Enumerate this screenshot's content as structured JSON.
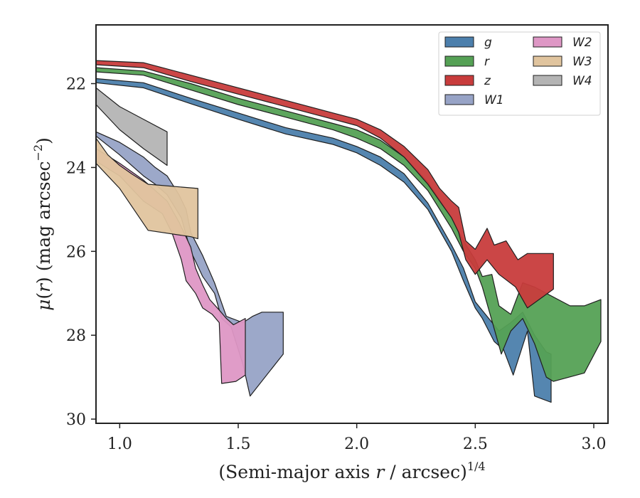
{
  "chart_data": {
    "type": "area",
    "xlabel": "(Semi-major axis r / arcsec)1/4",
    "ylabel": "μ(r) (mag arcsec−2)",
    "xlim": [
      0.9,
      3.06
    ],
    "ylim": [
      30.1,
      20.6
    ],
    "y_inverted": true,
    "grid": false,
    "legend_position": "top-right",
    "legend_columns": 2,
    "x_ticks": [
      1.0,
      1.5,
      2.0,
      2.5,
      3.0
    ],
    "x_tick_labels": [
      "1.0",
      "1.5",
      "2.0",
      "2.5",
      "3.0"
    ],
    "y_ticks": [
      22,
      24,
      26,
      28,
      30
    ],
    "y_tick_labels": [
      "22",
      "24",
      "26",
      "28",
      "30"
    ],
    "series": [
      {
        "name": "g",
        "color": "#4c7fac",
        "upper": [
          [
            0.9,
            21.88
          ],
          [
            1.1,
            21.98
          ],
          [
            1.3,
            22.35
          ],
          [
            1.5,
            22.7
          ],
          [
            1.7,
            23.05
          ],
          [
            1.9,
            23.3
          ],
          [
            2.0,
            23.5
          ],
          [
            2.1,
            23.75
          ],
          [
            2.2,
            24.15
          ],
          [
            2.3,
            24.85
          ],
          [
            2.4,
            25.85
          ],
          [
            2.45,
            26.4
          ],
          [
            2.5,
            27.2
          ],
          [
            2.55,
            27.55
          ],
          [
            2.6,
            27.9
          ],
          [
            2.65,
            27.7
          ],
          [
            2.7,
            27.45
          ],
          [
            2.75,
            28.0
          ],
          [
            2.8,
            28.4
          ],
          [
            2.82,
            28.45
          ]
        ],
        "lower": [
          [
            2.82,
            29.6
          ],
          [
            2.75,
            29.45
          ],
          [
            2.72,
            27.9
          ],
          [
            2.66,
            28.95
          ],
          [
            2.62,
            28.35
          ],
          [
            2.58,
            28.15
          ],
          [
            2.53,
            27.6
          ],
          [
            2.5,
            27.35
          ],
          [
            2.45,
            26.7
          ],
          [
            2.4,
            26.0
          ],
          [
            2.3,
            25.0
          ],
          [
            2.2,
            24.35
          ],
          [
            2.1,
            23.95
          ],
          [
            2.0,
            23.65
          ],
          [
            1.9,
            23.45
          ],
          [
            1.7,
            23.2
          ],
          [
            1.5,
            22.85
          ],
          [
            1.3,
            22.48
          ],
          [
            1.1,
            22.1
          ],
          [
            0.9,
            21.98
          ]
        ]
      },
      {
        "name": "r",
        "color": "#55a155",
        "upper": [
          [
            0.9,
            21.62
          ],
          [
            1.1,
            21.7
          ],
          [
            1.3,
            22.0
          ],
          [
            1.5,
            22.35
          ],
          [
            1.7,
            22.65
          ],
          [
            1.9,
            22.95
          ],
          [
            2.0,
            23.1
          ],
          [
            2.1,
            23.35
          ],
          [
            2.2,
            23.75
          ],
          [
            2.3,
            24.35
          ],
          [
            2.4,
            25.2
          ],
          [
            2.45,
            25.75
          ],
          [
            2.5,
            26.2
          ],
          [
            2.53,
            26.6
          ],
          [
            2.57,
            26.55
          ],
          [
            2.6,
            27.3
          ],
          [
            2.65,
            27.5
          ],
          [
            2.7,
            26.75
          ],
          [
            2.75,
            26.85
          ],
          [
            2.8,
            27.0
          ],
          [
            2.9,
            27.3
          ],
          [
            2.96,
            27.3
          ],
          [
            3.03,
            27.15
          ]
        ],
        "lower": [
          [
            3.03,
            28.15
          ],
          [
            2.96,
            28.9
          ],
          [
            2.83,
            29.1
          ],
          [
            2.8,
            29.0
          ],
          [
            2.75,
            28.2
          ],
          [
            2.7,
            27.6
          ],
          [
            2.65,
            27.9
          ],
          [
            2.61,
            28.45
          ],
          [
            2.57,
            27.65
          ],
          [
            2.53,
            26.85
          ],
          [
            2.5,
            26.4
          ],
          [
            2.45,
            26.0
          ],
          [
            2.4,
            25.45
          ],
          [
            2.3,
            24.55
          ],
          [
            2.2,
            23.95
          ],
          [
            2.1,
            23.55
          ],
          [
            2.0,
            23.3
          ],
          [
            1.9,
            23.1
          ],
          [
            1.7,
            22.8
          ],
          [
            1.5,
            22.5
          ],
          [
            1.3,
            22.15
          ],
          [
            1.1,
            21.8
          ],
          [
            0.9,
            21.72
          ]
        ]
      },
      {
        "name": "z",
        "color": "#c83c3c",
        "upper": [
          [
            0.9,
            21.45
          ],
          [
            1.1,
            21.5
          ],
          [
            1.3,
            21.8
          ],
          [
            1.5,
            22.1
          ],
          [
            1.7,
            22.4
          ],
          [
            1.9,
            22.7
          ],
          [
            2.0,
            22.85
          ],
          [
            2.1,
            23.1
          ],
          [
            2.2,
            23.5
          ],
          [
            2.3,
            24.05
          ],
          [
            2.35,
            24.5
          ],
          [
            2.4,
            24.8
          ],
          [
            2.43,
            24.95
          ],
          [
            2.46,
            25.75
          ],
          [
            2.5,
            25.95
          ],
          [
            2.55,
            25.45
          ],
          [
            2.58,
            25.85
          ],
          [
            2.63,
            25.75
          ],
          [
            2.68,
            26.2
          ],
          [
            2.72,
            26.05
          ],
          [
            2.83,
            26.05
          ]
        ],
        "lower": [
          [
            2.83,
            26.9
          ],
          [
            2.72,
            27.35
          ],
          [
            2.67,
            26.85
          ],
          [
            2.6,
            26.55
          ],
          [
            2.55,
            26.2
          ],
          [
            2.5,
            26.55
          ],
          [
            2.46,
            26.2
          ],
          [
            2.43,
            25.55
          ],
          [
            2.4,
            25.2
          ],
          [
            2.35,
            24.8
          ],
          [
            2.3,
            24.4
          ],
          [
            2.2,
            23.75
          ],
          [
            2.1,
            23.3
          ],
          [
            2.0,
            23.0
          ],
          [
            1.9,
            22.85
          ],
          [
            1.7,
            22.55
          ],
          [
            1.5,
            22.25
          ],
          [
            1.3,
            21.95
          ],
          [
            1.1,
            21.62
          ],
          [
            0.9,
            21.55
          ]
        ]
      },
      {
        "name": "W1",
        "color": "#97a3c6",
        "upper": [
          [
            0.9,
            23.15
          ],
          [
            1.0,
            23.4
          ],
          [
            1.1,
            23.75
          ],
          [
            1.15,
            24.0
          ],
          [
            1.2,
            24.2
          ],
          [
            1.25,
            24.65
          ],
          [
            1.28,
            25.0
          ],
          [
            1.3,
            25.55
          ],
          [
            1.35,
            26.1
          ],
          [
            1.4,
            26.75
          ],
          [
            1.45,
            27.55
          ],
          [
            1.52,
            27.7
          ],
          [
            1.56,
            27.55
          ],
          [
            1.6,
            27.45
          ],
          [
            1.69,
            27.45
          ]
        ],
        "lower": [
          [
            1.69,
            28.45
          ],
          [
            1.55,
            29.45
          ],
          [
            1.52,
            28.7
          ],
          [
            1.47,
            27.8
          ],
          [
            1.43,
            27.6
          ],
          [
            1.4,
            27.0
          ],
          [
            1.35,
            26.6
          ],
          [
            1.3,
            26.0
          ],
          [
            1.26,
            25.2
          ],
          [
            1.2,
            24.65
          ],
          [
            1.15,
            24.4
          ],
          [
            1.1,
            24.2
          ],
          [
            1.0,
            23.7
          ],
          [
            0.9,
            23.25
          ]
        ]
      },
      {
        "name": "W2",
        "color": "#de97c5",
        "upper": [
          [
            0.9,
            23.55
          ],
          [
            1.0,
            23.9
          ],
          [
            1.1,
            24.3
          ],
          [
            1.2,
            24.8
          ],
          [
            1.25,
            25.3
          ],
          [
            1.3,
            25.9
          ],
          [
            1.32,
            26.4
          ],
          [
            1.35,
            26.8
          ],
          [
            1.38,
            27.15
          ],
          [
            1.42,
            27.4
          ],
          [
            1.45,
            27.6
          ],
          [
            1.48,
            27.75
          ],
          [
            1.53,
            27.6
          ]
        ],
        "lower": [
          [
            1.53,
            28.95
          ],
          [
            1.49,
            29.1
          ],
          [
            1.43,
            29.15
          ],
          [
            1.42,
            27.7
          ],
          [
            1.39,
            27.5
          ],
          [
            1.35,
            27.35
          ],
          [
            1.32,
            27.0
          ],
          [
            1.28,
            26.7
          ],
          [
            1.26,
            26.2
          ],
          [
            1.22,
            25.55
          ],
          [
            1.18,
            25.1
          ],
          [
            1.1,
            24.8
          ],
          [
            1.0,
            24.2
          ],
          [
            0.9,
            23.85
          ]
        ]
      },
      {
        "name": "W3",
        "color": "#e0c49e",
        "upper": [
          [
            0.9,
            23.3
          ],
          [
            0.95,
            23.7
          ],
          [
            1.0,
            23.95
          ],
          [
            1.05,
            24.15
          ],
          [
            1.12,
            24.4
          ],
          [
            1.33,
            24.5
          ]
        ],
        "lower": [
          [
            1.33,
            25.7
          ],
          [
            1.3,
            25.65
          ],
          [
            1.12,
            25.5
          ],
          [
            1.0,
            24.5
          ],
          [
            0.9,
            23.9
          ]
        ]
      },
      {
        "name": "W4",
        "color": "#b4b4b4",
        "upper": [
          [
            0.9,
            22.1
          ],
          [
            1.0,
            22.55
          ],
          [
            1.1,
            22.85
          ],
          [
            1.2,
            23.15
          ]
        ],
        "lower": [
          [
            1.2,
            23.95
          ],
          [
            1.1,
            23.55
          ],
          [
            1.0,
            23.1
          ],
          [
            0.9,
            22.5
          ]
        ]
      }
    ]
  }
}
